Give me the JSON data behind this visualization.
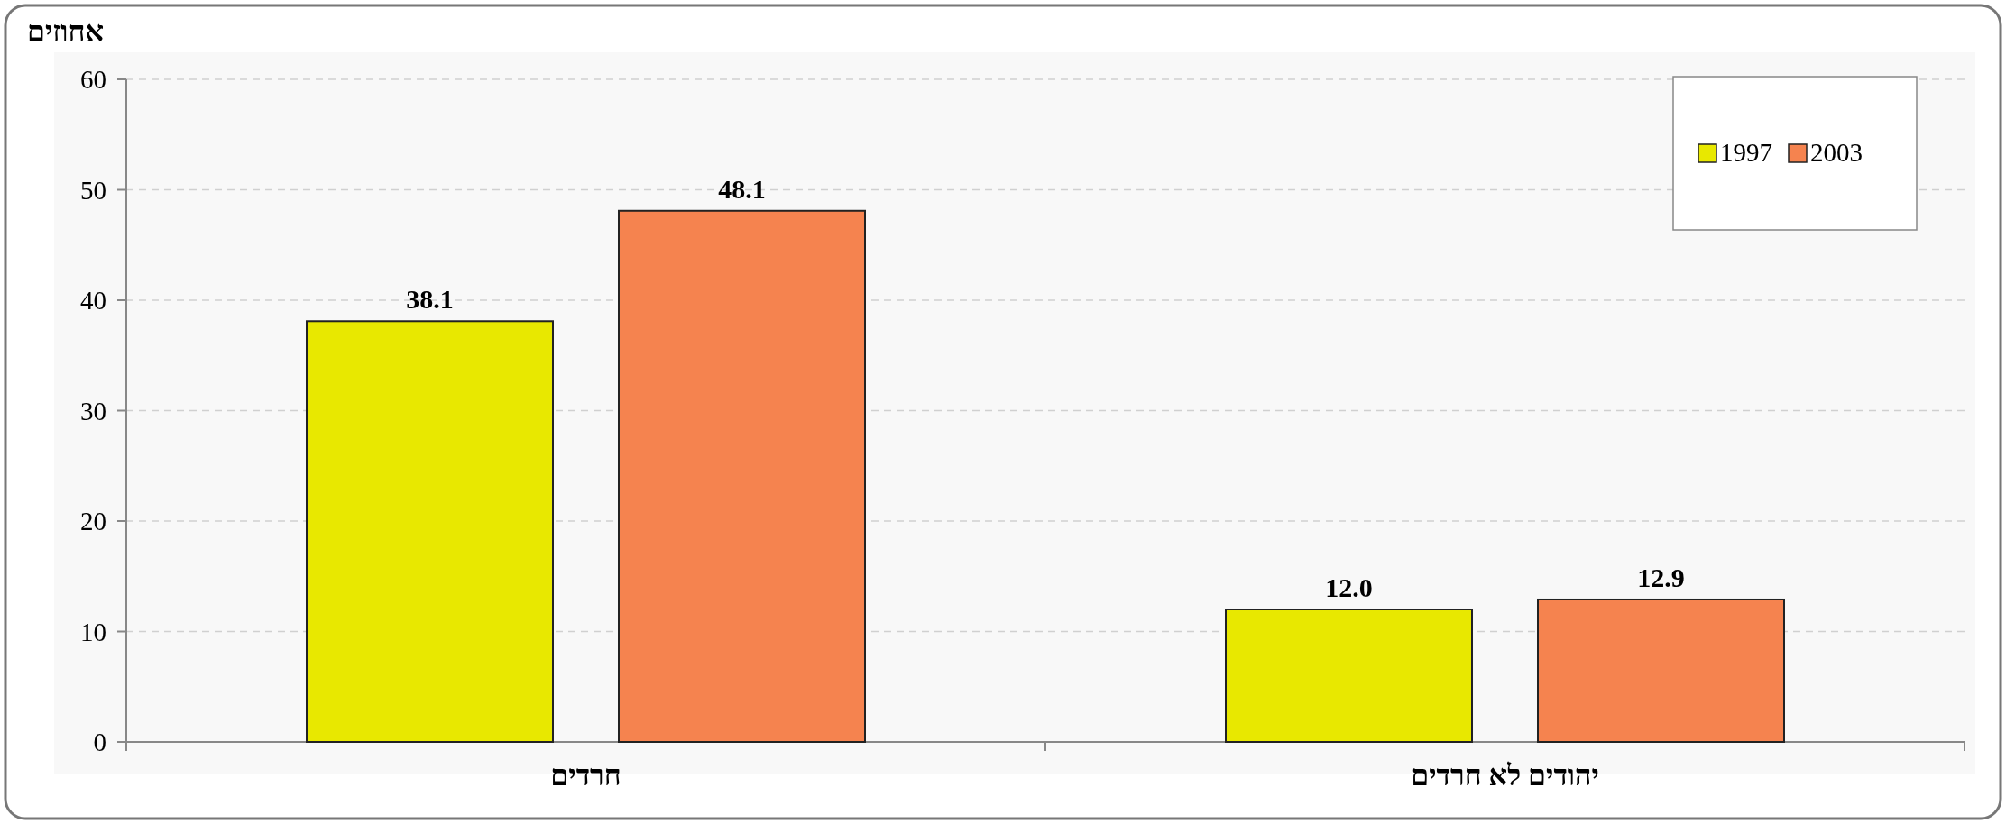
{
  "chart_data": {
    "type": "bar",
    "ylabel": "אחוזים",
    "categories": [
      "חרדים",
      "יהודים לא חרדים"
    ],
    "series": [
      {
        "name": "1997",
        "color": "#e8e800",
        "values": [
          38.1,
          12.0
        ],
        "value_labels": [
          "38.1",
          "12.0"
        ]
      },
      {
        "name": "2003",
        "color": "#f5834f",
        "values": [
          48.1,
          12.9
        ],
        "value_labels": [
          "48.1",
          "12.9"
        ]
      }
    ],
    "ylim": [
      0,
      60
    ],
    "yticks": [
      0,
      10,
      20,
      30,
      40,
      50,
      60
    ],
    "grid": "y",
    "legend": "top right"
  }
}
